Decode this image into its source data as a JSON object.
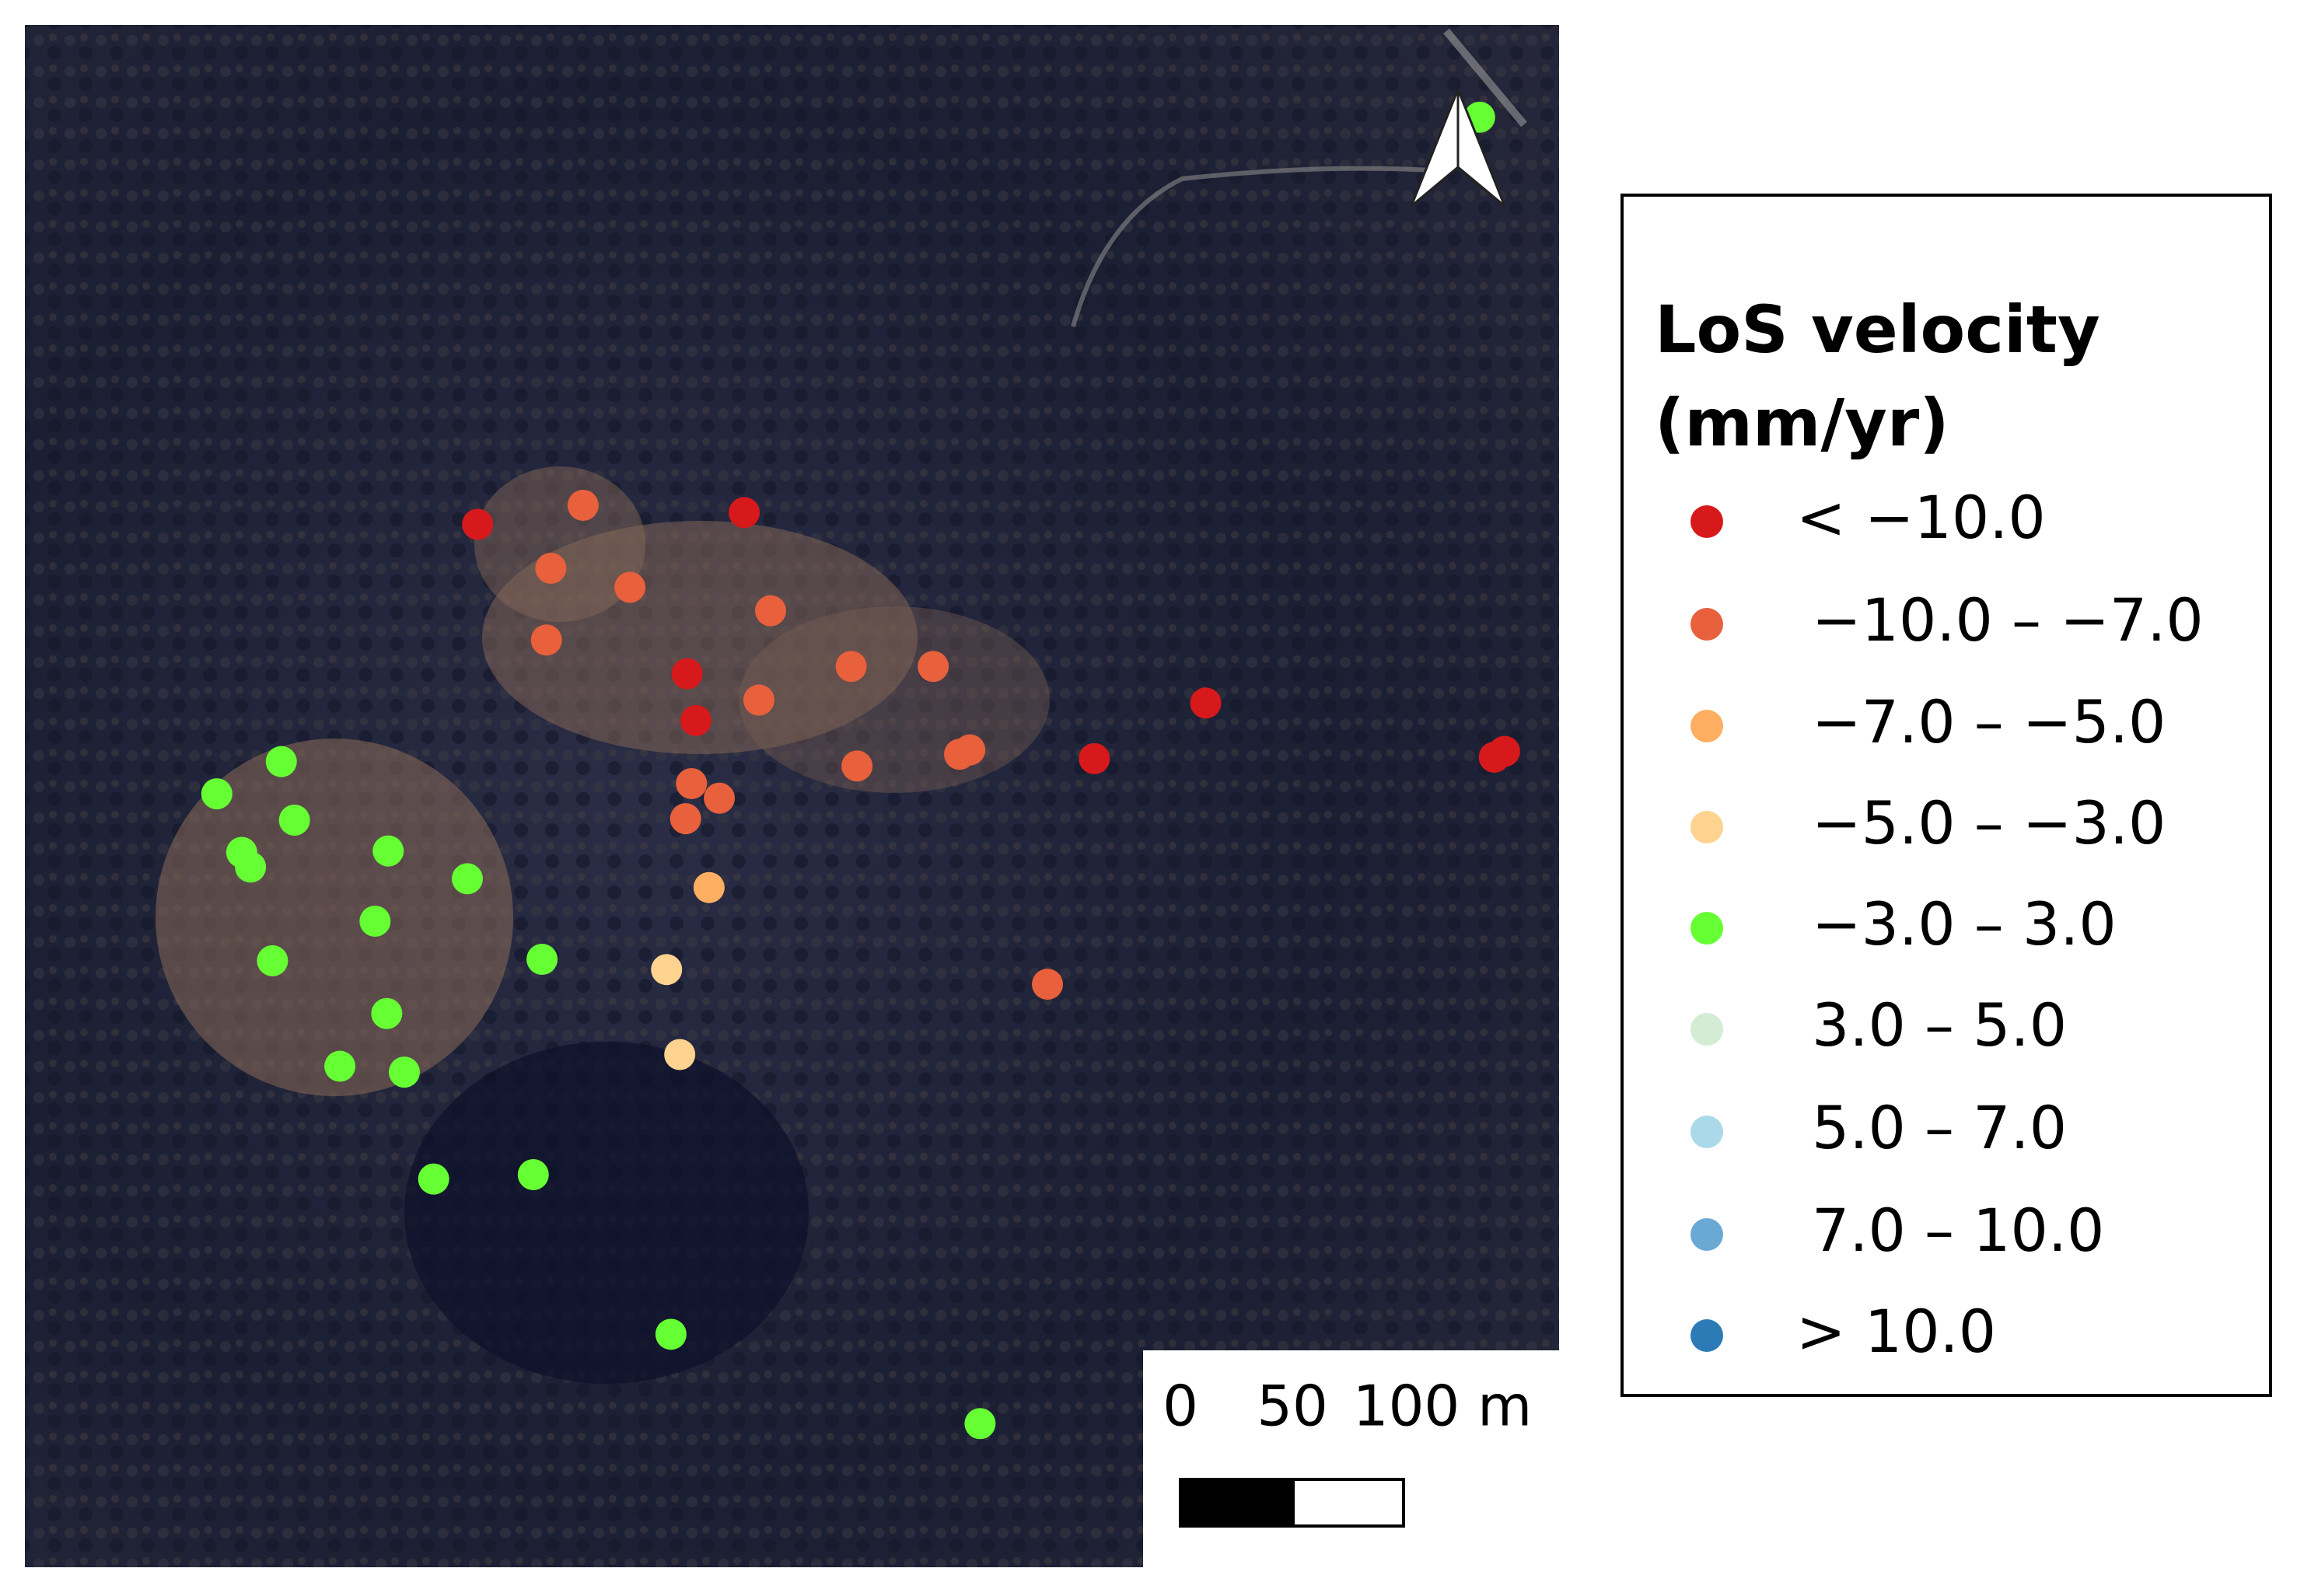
{
  "legend": {
    "title_lines": [
      "LoS velocity",
      "(mm/yr)"
    ],
    "classes": [
      {
        "label": "< −10.0",
        "color": "#d7191c"
      },
      {
        "label": "−10.0 – −7.0",
        "color": "#e8603c"
      },
      {
        "label": "−7.0 – −5.0",
        "color": "#fdae61"
      },
      {
        "label": "−5.0 – −3.0",
        "color": "#fed28f"
      },
      {
        "label": "−3.0 – 3.0",
        "color": "#66ff33"
      },
      {
        "label": "3.0 – 5.0",
        "color": "#d4ecd4"
      },
      {
        "label": "5.0 – 7.0",
        "color": "#abd9e9"
      },
      {
        "label": "7.0 – 10.0",
        "color": "#6aa9d4"
      },
      {
        "label": "> 10.0",
        "color": "#2c7bb6"
      }
    ]
  },
  "scale_bar": {
    "labels": [
      "0",
      "50",
      "100 m"
    ]
  }
}
